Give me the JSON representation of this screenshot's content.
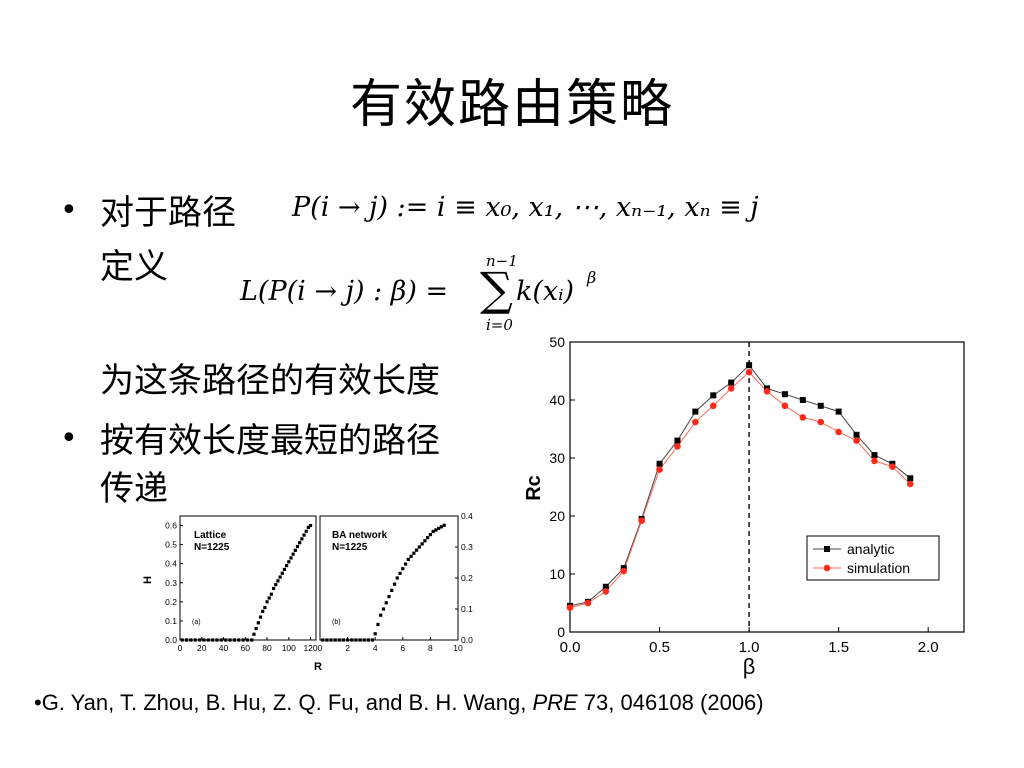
{
  "slide": {
    "title": "有效路由策略",
    "bullets": [
      {
        "line1": "对于路径",
        "line2": "定义",
        "line3": "为这条路径的有效长度"
      },
      {
        "line1": "按有效长度最短的路径",
        "line2": "传递"
      }
    ],
    "formula1": "P(i → j) := i ≡ x₀, x₁, ⋯, xₙ₋₁, xₙ ≡ j",
    "formula2_lhs": "L(P(i → j) : β) =",
    "formula2_sum_top": "n−1",
    "formula2_sum_bottom": "i=0",
    "formula2_rhs": "k(xᵢ)",
    "formula2_exp": "β"
  },
  "citation": {
    "bullet": "•",
    "authors": "G. Yan, T. Zhou, B. Hu, Z. Q. Fu, and B. H. Wang, ",
    "journal": "PRE",
    "rest": " 73, 046108 (2006)"
  },
  "chart_data": [
    {
      "type": "scatter",
      "panel": "(a)",
      "annotation": [
        "Lattice",
        "N=1225"
      ],
      "xlabel": "R",
      "ylabel": "H",
      "xlim": [
        0,
        125
      ],
      "ylim": [
        0,
        0.65
      ],
      "xticks": [
        "0",
        "20",
        "40",
        "60",
        "80",
        "100",
        "120"
      ],
      "yticks": [
        "0.0",
        "0.1",
        "0.2",
        "0.3",
        "0.4",
        "0.5",
        "0.6"
      ],
      "x": [
        2,
        6,
        10,
        14,
        18,
        22,
        26,
        30,
        34,
        38,
        42,
        46,
        50,
        54,
        58,
        62,
        66,
        68,
        70,
        72,
        74,
        76,
        78,
        80,
        82,
        84,
        86,
        88,
        90,
        92,
        94,
        96,
        98,
        100,
        102,
        104,
        106,
        108,
        110,
        112,
        114,
        116,
        118,
        120
      ],
      "y": [
        0,
        0,
        0,
        0,
        0,
        0,
        0,
        0,
        0,
        0,
        0,
        0,
        0,
        0,
        0,
        0,
        0,
        0.03,
        0.06,
        0.09,
        0.12,
        0.15,
        0.17,
        0.2,
        0.22,
        0.24,
        0.27,
        0.29,
        0.31,
        0.33,
        0.35,
        0.37,
        0.39,
        0.41,
        0.43,
        0.45,
        0.47,
        0.49,
        0.51,
        0.53,
        0.55,
        0.57,
        0.59,
        0.6
      ]
    },
    {
      "type": "scatter",
      "panel": "(b)",
      "annotation": [
        "BA network",
        "N=1225"
      ],
      "xlabel": "",
      "ylabel": "",
      "xlim": [
        0,
        10
      ],
      "ylim": [
        0,
        0.4
      ],
      "xticks": [
        "0",
        "2",
        "4",
        "6",
        "8",
        "10"
      ],
      "yticks": [
        "0.0",
        "0.1",
        "0.2",
        "0.3",
        "0.4"
      ],
      "x": [
        0.2,
        0.5,
        0.8,
        1.1,
        1.4,
        1.7,
        2.0,
        2.3,
        2.6,
        2.9,
        3.2,
        3.5,
        3.8,
        4.0,
        4.2,
        4.4,
        4.6,
        4.8,
        5.0,
        5.2,
        5.4,
        5.6,
        5.8,
        6.0,
        6.2,
        6.4,
        6.6,
        6.8,
        7.0,
        7.2,
        7.4,
        7.6,
        7.8,
        8.0,
        8.2,
        8.4,
        8.6,
        8.8,
        9.0
      ],
      "y": [
        0,
        0,
        0,
        0,
        0,
        0,
        0,
        0,
        0,
        0,
        0,
        0,
        0,
        0.02,
        0.05,
        0.08,
        0.1,
        0.12,
        0.14,
        0.16,
        0.18,
        0.2,
        0.215,
        0.23,
        0.245,
        0.26,
        0.27,
        0.28,
        0.29,
        0.3,
        0.31,
        0.32,
        0.33,
        0.34,
        0.35,
        0.355,
        0.36,
        0.365,
        0.37
      ]
    },
    {
      "type": "line",
      "xlabel": "β",
      "ylabel": "Rc",
      "xlim": [
        0,
        2.2
      ],
      "ylim": [
        0,
        50
      ],
      "xticks": [
        "0.0",
        "0.5",
        "1.0",
        "1.5",
        "2.0"
      ],
      "yticks": [
        "0",
        "10",
        "20",
        "30",
        "40",
        "50"
      ],
      "vline": 1.0,
      "legend_position": "lower-right",
      "series": [
        {
          "name": "analytic",
          "color": "#000000",
          "x": [
            0,
            0.1,
            0.2,
            0.3,
            0.4,
            0.5,
            0.6,
            0.7,
            0.8,
            0.9,
            1.0,
            1.1,
            1.2,
            1.3,
            1.4,
            1.5,
            1.6,
            1.7,
            1.8,
            1.9
          ],
          "y": [
            4.5,
            5.2,
            7.8,
            11,
            19.5,
            29,
            33,
            38,
            40.8,
            43,
            46,
            42,
            41,
            40,
            39,
            38,
            34,
            30.5,
            29,
            26.5
          ]
        },
        {
          "name": "simulation",
          "color": "#ff2a1a",
          "x": [
            0,
            0.1,
            0.2,
            0.3,
            0.4,
            0.5,
            0.6,
            0.7,
            0.8,
            0.9,
            1.0,
            1.1,
            1.2,
            1.3,
            1.4,
            1.5,
            1.6,
            1.7,
            1.8,
            1.9
          ],
          "y": [
            4.2,
            5,
            7,
            10.5,
            19.2,
            28,
            32,
            36.2,
            39,
            42,
            44.8,
            41.5,
            39,
            37,
            36.2,
            34.5,
            33,
            29.5,
            28.5,
            25.5
          ]
        }
      ]
    }
  ]
}
